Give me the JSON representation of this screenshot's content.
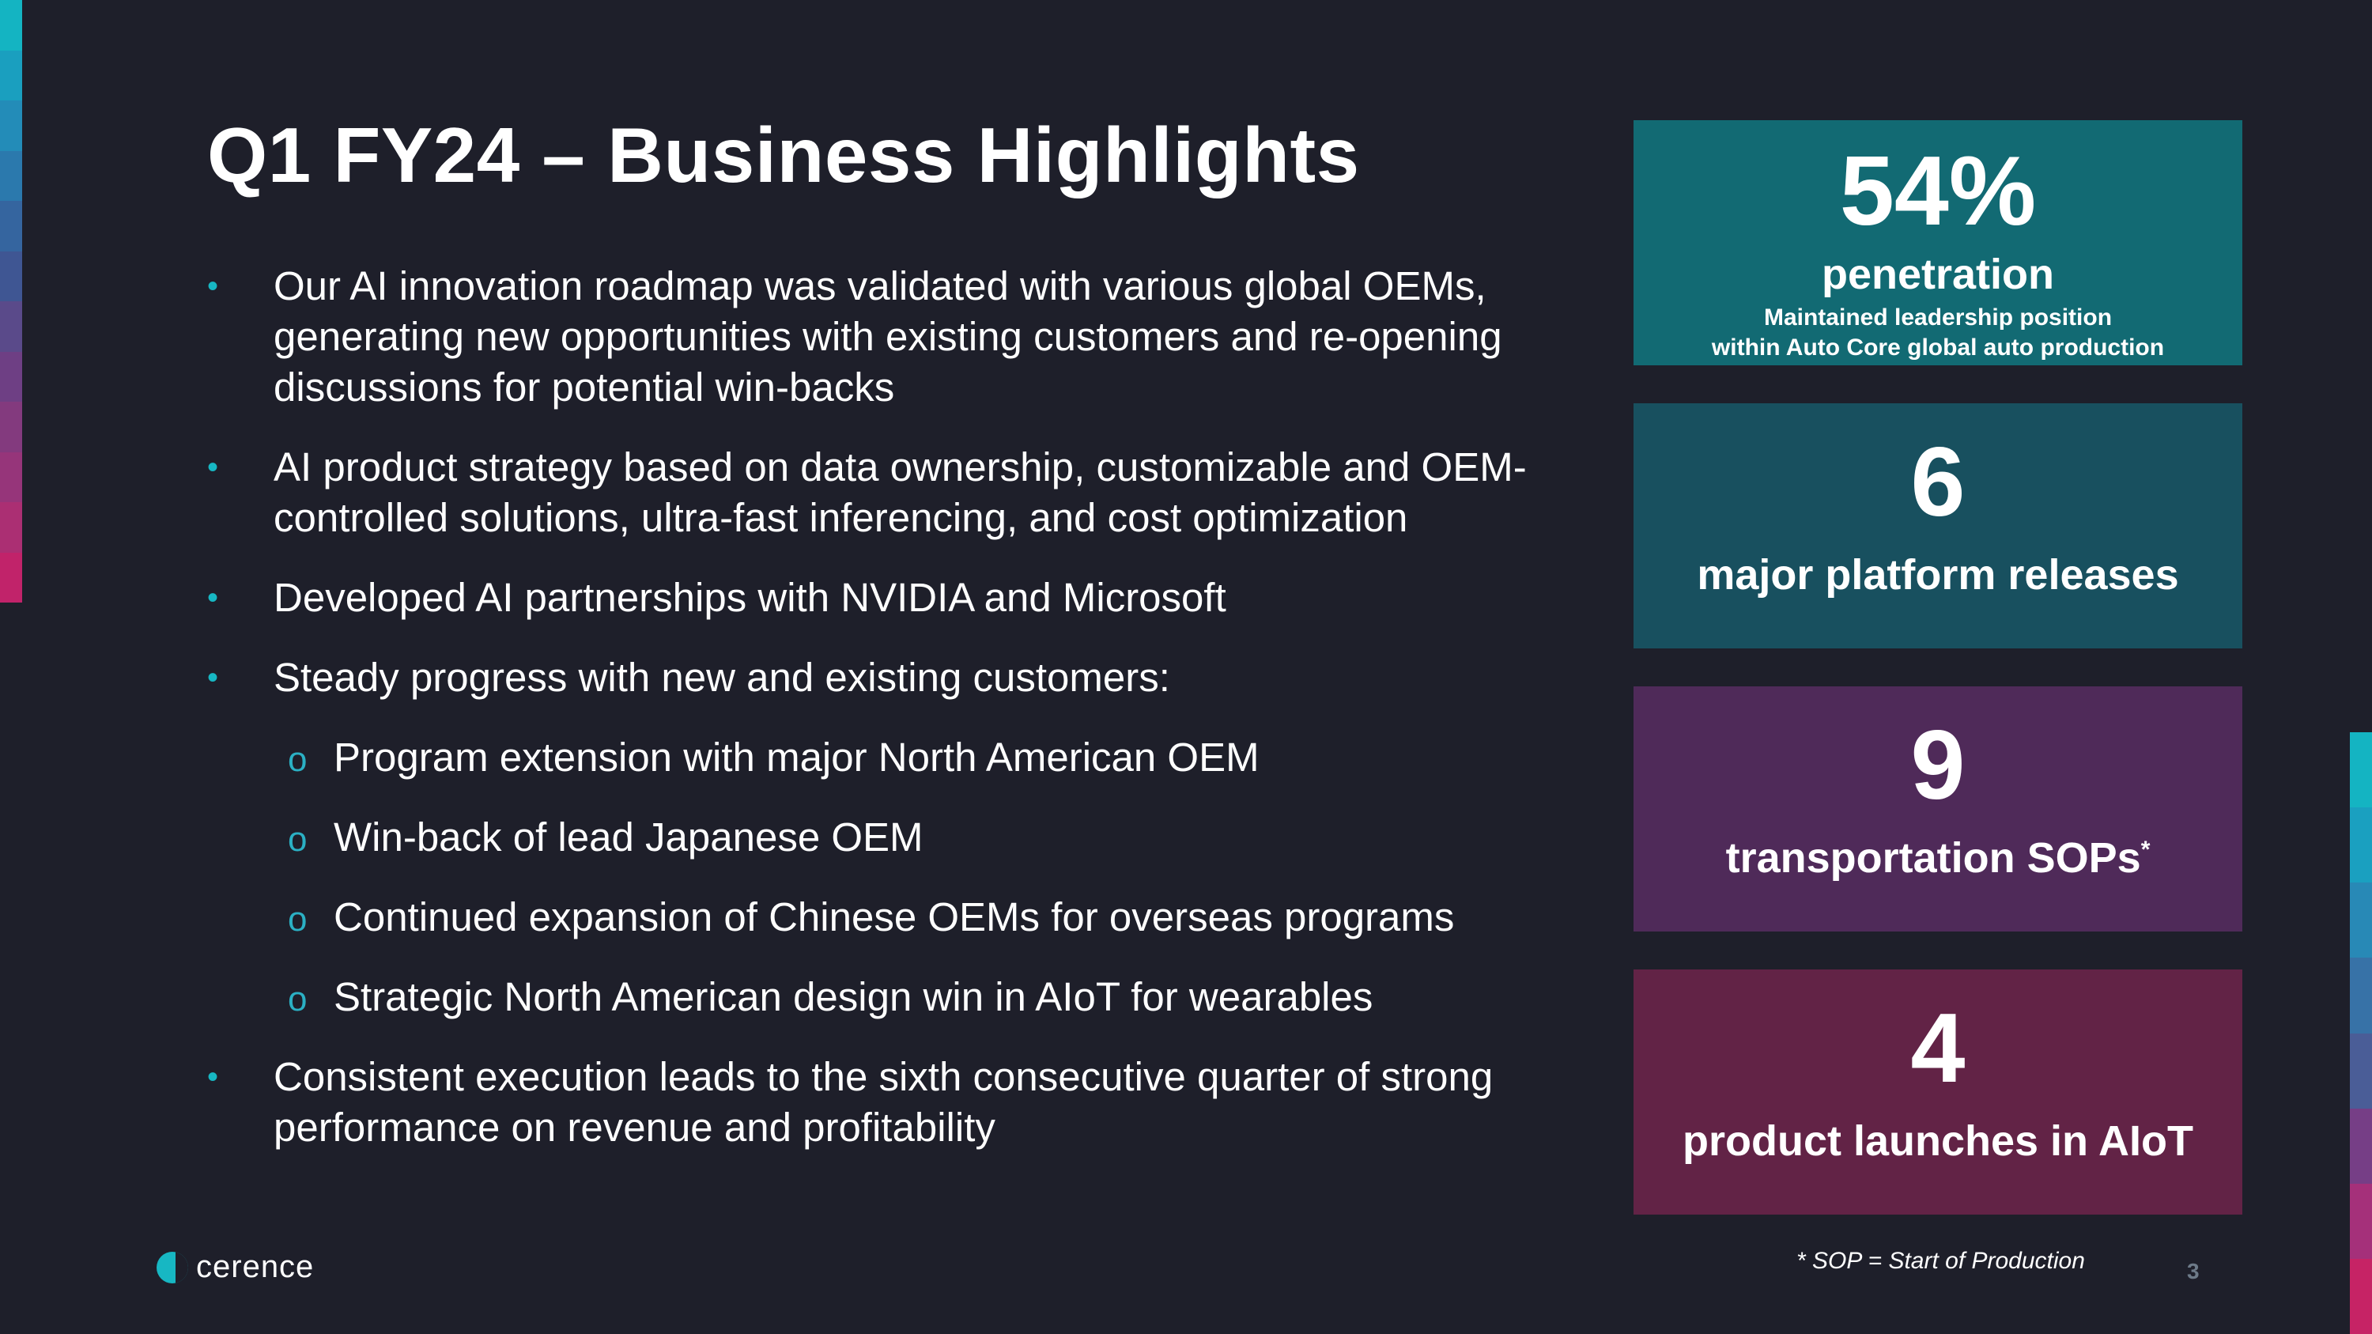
{
  "colors": {
    "background": "#1e1f2a",
    "accent_teal": "#17b7c3",
    "card1": "#126a73",
    "card2": "#18505f",
    "card3": "#4f2a59",
    "card4": "#622346",
    "left_strip": [
      "#14b4c2",
      "#1a9fbf",
      "#238cb8",
      "#2b79ad",
      "#35659f",
      "#3f5693",
      "#5a4a8a",
      "#6e3f84",
      "#833a7e",
      "#96357a",
      "#ab2f73",
      "#c1236a"
    ],
    "right_strip": [
      "#14b4c2",
      "#1aa0c0",
      "#2889b6",
      "#3772a7",
      "#4a5d97",
      "#763e86",
      "#a5307a",
      "#c62365"
    ]
  },
  "title": "Q1 FY24 – Business Highlights",
  "bullets": {
    "b1": "Our AI innovation roadmap was validated with various global OEMs, generating new opportunities with existing customers and re-opening discussions for potential win-backs",
    "b2": "AI product strategy based on data ownership, customizable and OEM-controlled solutions, ultra-fast inferencing, and cost optimization",
    "b3": "Developed AI partnerships with NVIDIA and Microsoft",
    "b4": "Steady progress with new and existing customers:",
    "sub1": "Program extension with major North American OEM",
    "sub2": "Win-back of lead Japanese OEM",
    "sub3": "Continued expansion of Chinese OEMs for overseas programs",
    "sub4": "Strategic North American design win in AIoT for wearables",
    "b5": "Consistent execution leads to the sixth consecutive quarter of strong performance on revenue and profitability",
    "marker": "•",
    "sub_marker": "o"
  },
  "cards": {
    "card1": {
      "value": "54%",
      "label": "penetration",
      "desc_line1": "Maintained leadership position",
      "desc_line2": "within Auto Core global auto production"
    },
    "card2": {
      "value": "6",
      "label": "major platform releases"
    },
    "card3": {
      "value": "9",
      "label": "transportation SOPs",
      "superscript": "*"
    },
    "card4": {
      "value": "4",
      "label": "product launches in AIoT"
    }
  },
  "footnote": "* SOP = Start of Production",
  "page_number": "3",
  "logo_text": "cerence"
}
